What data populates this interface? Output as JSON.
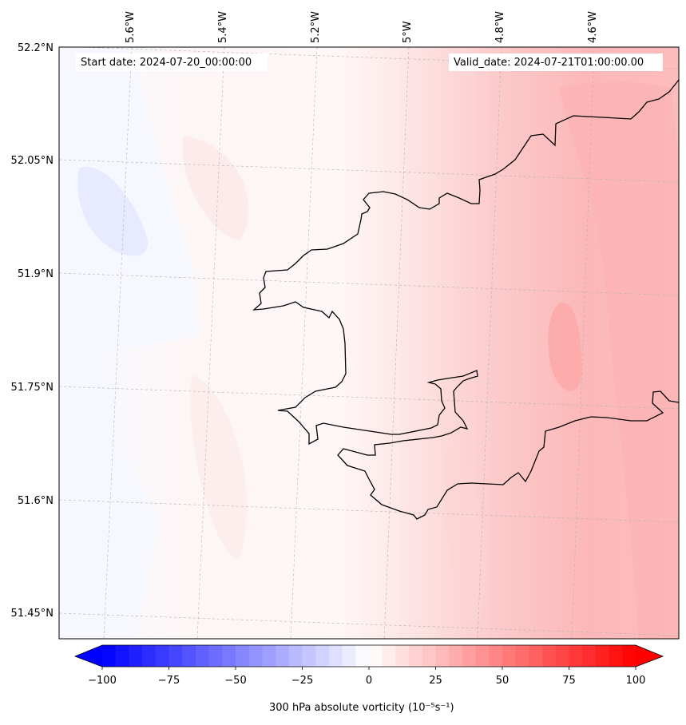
{
  "map": {
    "header_start": "Start date: 2024-07-20_00:00:00",
    "header_valid": "Valid_date: 2024-07-21T01:00:00.00",
    "lat_labels": [
      "52.2°N",
      "52.05°N",
      "51.9°N",
      "51.75°N",
      "51.6°N",
      "51.45°N"
    ],
    "lon_labels": [
      "5.6°W",
      "5.4°W",
      "5.2°W",
      "5°W",
      "4.8°W",
      "4.6°W"
    ],
    "field": "300 hPa absolute vorticity",
    "units": "(10⁻⁵s⁻¹)",
    "colorbar": {
      "label": "300 hPa absolute vorticity (10⁻⁵s⁻¹)",
      "ticks": [
        "−100",
        "−75",
        "−50",
        "−25",
        "0",
        "25",
        "50",
        "75",
        "100"
      ],
      "min": -100,
      "max": 100,
      "step": 5,
      "neg_color": "#0000ff",
      "pos_color": "#ff0000",
      "mid_color": "#ffffff",
      "extend": "both"
    },
    "colors": {
      "coastline": "#000000",
      "gridline": "#b0b0b0"
    }
  }
}
